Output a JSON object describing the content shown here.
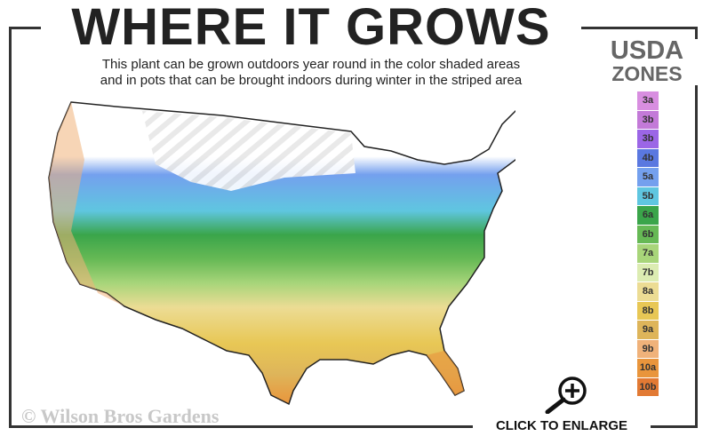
{
  "title": "WHERE IT GROWS",
  "subtitle": [
    "This plant can be grown outdoors year round in the color shaded areas",
    "and in pots that can be brought indoors during winter in the striped area"
  ],
  "legend": {
    "title_line1": "USDA",
    "title_line2": "ZONES",
    "zones": [
      {
        "label": "3a",
        "color": "#d88ee0"
      },
      {
        "label": "3b",
        "color": "#c37ad8"
      },
      {
        "label": "3b",
        "color": "#9b66e6"
      },
      {
        "label": "4b",
        "color": "#5a78e0"
      },
      {
        "label": "5a",
        "color": "#74a0ee"
      },
      {
        "label": "5b",
        "color": "#5fc6e0"
      },
      {
        "label": "6a",
        "color": "#3aa54a"
      },
      {
        "label": "6b",
        "color": "#66b955"
      },
      {
        "label": "7a",
        "color": "#a8d57a"
      },
      {
        "label": "7b",
        "color": "#dcecb2"
      },
      {
        "label": "8a",
        "color": "#ecdc94"
      },
      {
        "label": "8b",
        "color": "#e8c755"
      },
      {
        "label": "9a",
        "color": "#deb55a"
      },
      {
        "label": "9b",
        "color": "#f0b27a"
      },
      {
        "label": "10a",
        "color": "#e9953c"
      },
      {
        "label": "10b",
        "color": "#e27a34"
      }
    ]
  },
  "watermark": "© Wilson Bros Gardens",
  "enlarge_label": "CLICK TO ENLARGE",
  "icons": {
    "enlarge": "magnifier-plus-icon"
  }
}
